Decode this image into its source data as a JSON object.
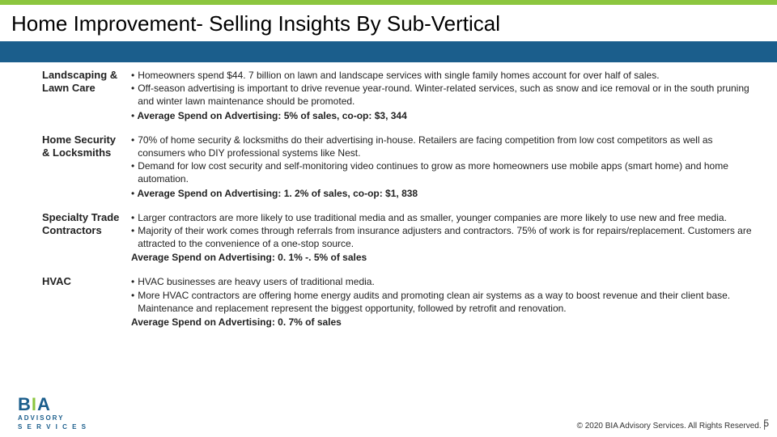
{
  "colors": {
    "accent_green": "#8cc63f",
    "brand_blue": "#1b5e8c",
    "text": "#222222",
    "background": "#ffffff"
  },
  "header": {
    "title": "Home Improvement- Selling Insights By Sub-Vertical"
  },
  "sections": [
    {
      "label": "Landscaping & Lawn Care",
      "bullets": [
        "Homeowners spend $44. 7 billion on lawn and landscape services with single family homes account for over half of sales.",
        "Off-season advertising is important to drive revenue year-round. Winter-related services, such as snow and ice removal or in the south pruning and winter lawn maintenance should be promoted."
      ],
      "summary_prefix": "• ",
      "summary_bold": "Average Spend on Advertising: 5% of sales, co-op: $3, 344",
      "summary_tail": ""
    },
    {
      "label": "Home Security & Locksmiths",
      "bullets": [
        "70% of home security & locksmiths do their advertising in-house. Retailers are facing competition from low cost competitors as well as consumers who DIY professional systems like Nest.",
        "Demand for low cost security and self-monitoring video continues to grow as more homeowners use mobile apps (smart home) and home automation."
      ],
      "summary_prefix": "• ",
      "summary_bold": "Average Spend on Advertising: 1. 2% of sales, co-op: $1, 838",
      "summary_tail": ""
    },
    {
      "label": "Specialty Trade Contractors",
      "bullets": [
        "Larger contractors are more likely to use traditional media and as smaller, younger companies are more likely to use new and free media.",
        "Majority of their work comes through referrals from insurance adjusters and contractors. 75% of work is for repairs/replacement. Customers are attracted to the convenience of a one-stop source."
      ],
      "summary_prefix": "",
      "summary_bold": "Average Spend on Advertising: 0. 1% -. 5% of sales",
      "summary_tail": ""
    },
    {
      "label": "HVAC",
      "bullets": [
        "HVAC businesses are heavy users of traditional media.",
        "More HVAC contractors are offering home energy audits and promoting clean air systems as a way to boost revenue and their client base. Maintenance and replacement represent the biggest opportunity, followed by retrofit and renovation."
      ],
      "summary_prefix": "",
      "summary_bold": "Average Spend on Advertising: 0. 7% of sales",
      "summary_tail": ""
    }
  ],
  "footer": {
    "logo_main_pre": "B",
    "logo_main_i": "I",
    "logo_main_post": "A",
    "logo_sub1": "ADVISORY",
    "logo_sub2": "S E R V I C E S",
    "copyright": "© 2020 BIA Advisory Services. All Rights Reserved.  |",
    "page_number": "5"
  }
}
